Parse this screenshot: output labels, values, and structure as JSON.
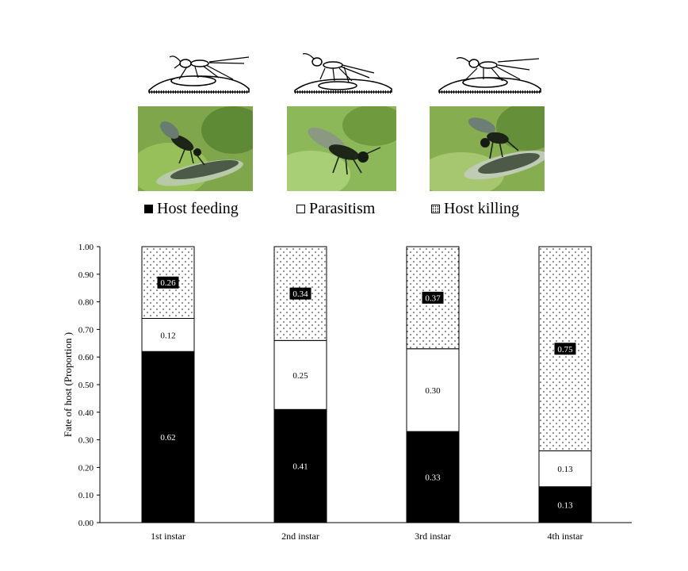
{
  "legend": {
    "host_feeding": "Host feeding",
    "parasitism": "Parasitism",
    "host_killing": "Host killing"
  },
  "illustrations": [
    {
      "name": "host-feeding",
      "photo_bg": "#7fa64a"
    },
    {
      "name": "parasitism",
      "photo_bg": "#8db85a"
    },
    {
      "name": "host-killing",
      "photo_bg": "#86ad4f"
    }
  ],
  "chart_data": {
    "type": "bar",
    "stacked": true,
    "categories": [
      "1st instar",
      "2nd instar",
      "3rd instar",
      "4th instar"
    ],
    "series": [
      {
        "name": "Host feeding",
        "fill": "black",
        "values": [
          0.62,
          0.41,
          0.33,
          0.13
        ],
        "labels": [
          "0.62",
          "0.41",
          "0.33",
          "0.13"
        ]
      },
      {
        "name": "Parasitism",
        "fill": "white",
        "values": [
          0.12,
          0.25,
          0.3,
          0.13
        ],
        "labels": [
          "0.12",
          "0.25",
          "0.30",
          "0.13"
        ]
      },
      {
        "name": "Host killing",
        "fill": "dots",
        "values": [
          0.26,
          0.34,
          0.37,
          0.75
        ],
        "labels": [
          "0.26",
          "0.34",
          "0.37",
          "0.75"
        ]
      }
    ],
    "ylabel": "Fate of host (Proportion )",
    "xlabel": "",
    "ylim": [
      0,
      1.0
    ],
    "yticks": [
      "0.00",
      "0.10",
      "0.20",
      "0.30",
      "0.40",
      "0.50",
      "0.60",
      "0.70",
      "0.80",
      "0.90",
      "1.00"
    ],
    "grid": false,
    "legend": "top"
  }
}
